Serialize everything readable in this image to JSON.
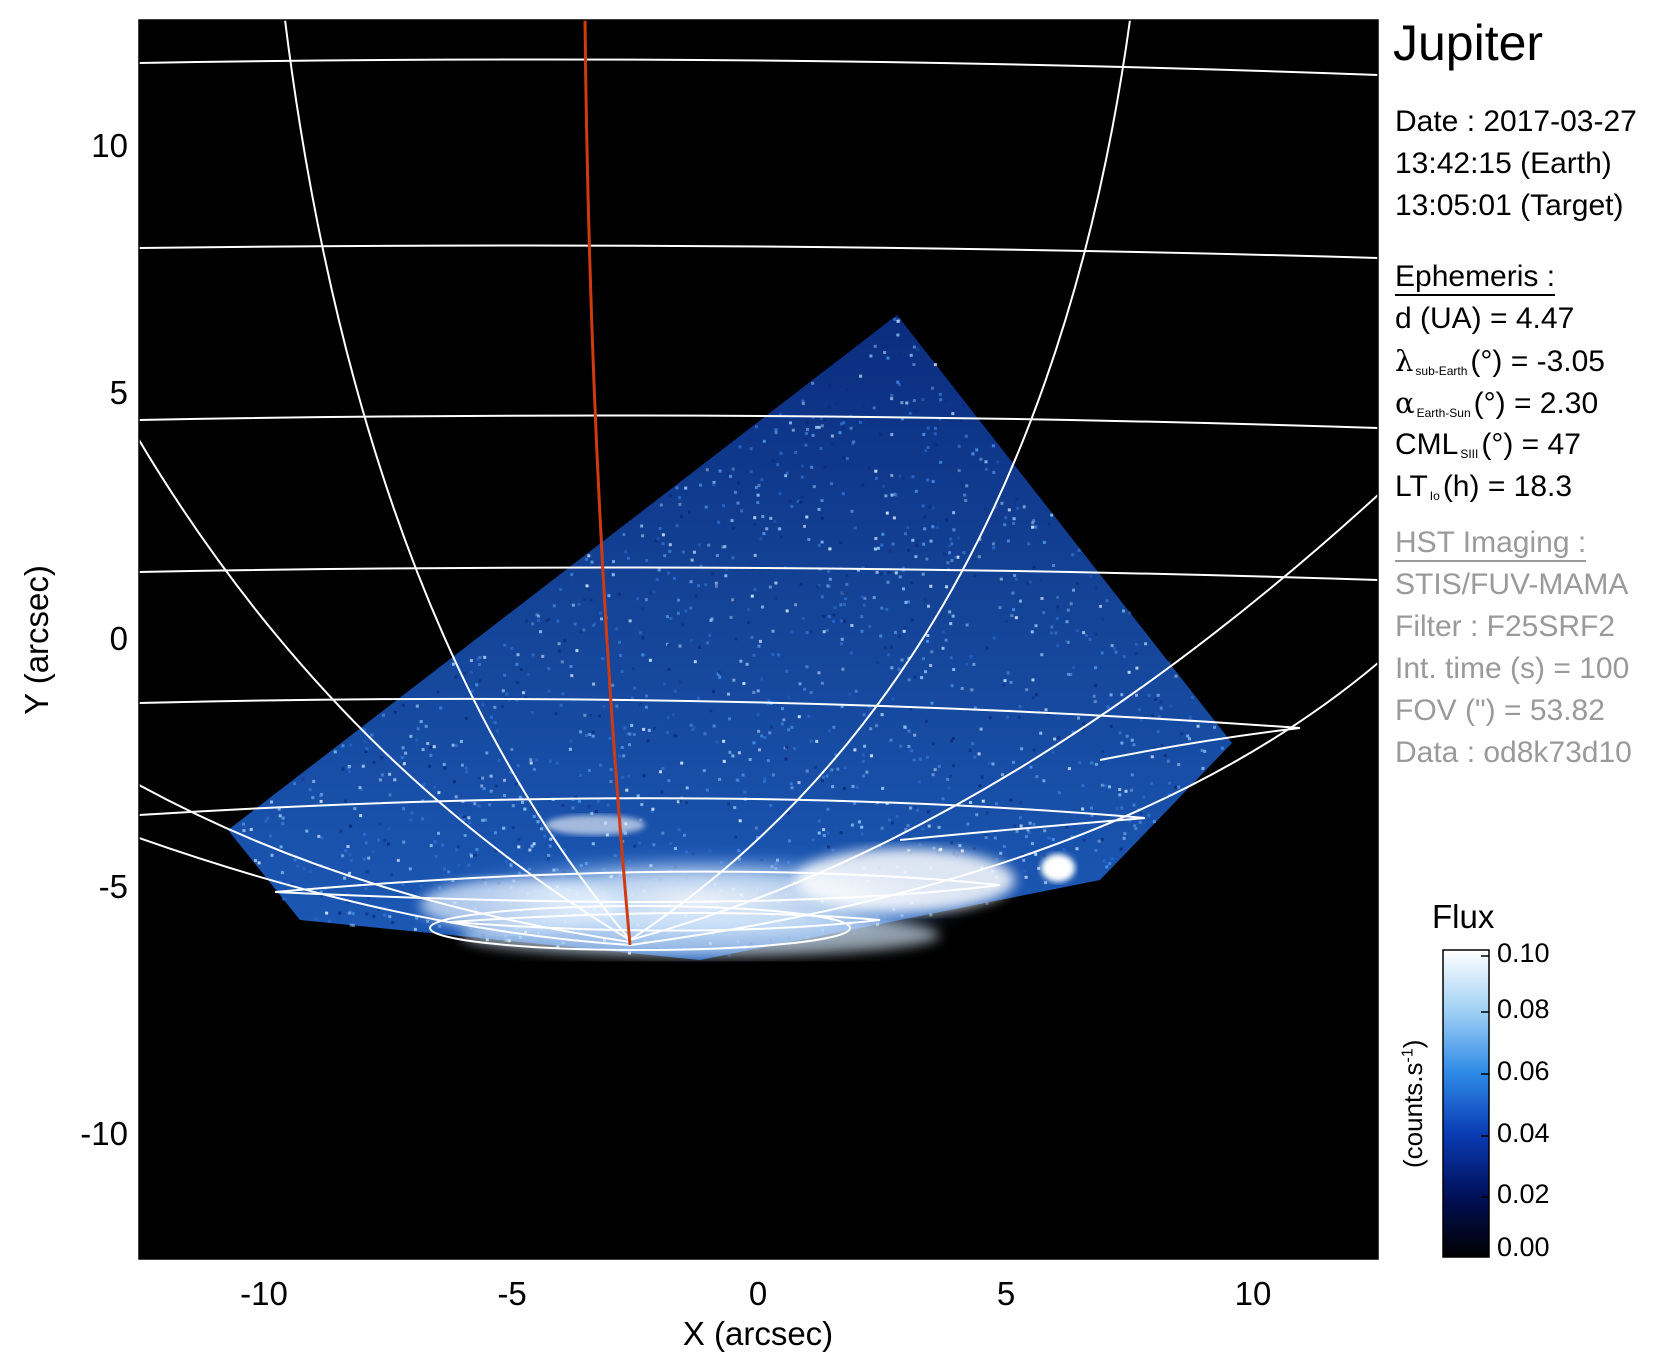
{
  "image": {
    "x_axis_title": "X (arcsec)",
    "y_axis_title": "Y (arcsec)",
    "x_ticks": [
      "-10",
      "-5",
      "0",
      "5",
      "10"
    ],
    "y_ticks": [
      "10",
      "5",
      "0",
      "-5",
      "-10"
    ],
    "x_range": [
      -12.5,
      12.5
    ],
    "y_range": [
      -12.5,
      12.5
    ],
    "background_color": "#000000",
    "grid_color": "#ffffff",
    "footprint_line_color": "#d03a10",
    "emission_color": "#3d7fe0"
  },
  "header": {
    "target": "Jupiter",
    "date": "Date : 2017-03-27",
    "time_earth": "13:42:15 (Earth)",
    "time_target": "13:05:01 (Target)"
  },
  "ephemeris": {
    "heading": "Ephemeris :",
    "distance": "d (UA)    = 4.47",
    "lat_symbol": "λ",
    "lat_sub": "sub-Earth",
    "lat_rest": "(°) = -3.05",
    "phase_symbol": "α",
    "phase_sub": "Earth-Sun",
    "phase_rest": "(°) = 2.30",
    "cml_main": "CML",
    "cml_sub": "SIII",
    "cml_rest": "(°) = 47",
    "lt_main": "LT",
    "lt_sub": "Io",
    "lt_rest": "(h) = 18.3"
  },
  "imaging": {
    "heading": "HST Imaging :",
    "instrument": "STIS/FUV-MAMA",
    "filter": "Filter : F25SRF2",
    "int_time": "Int. time (s) = 100",
    "fov": "FOV (\") = 53.82",
    "data": "Data : od8k73d10"
  },
  "colorbar": {
    "title": "Flux",
    "unit": "(counts.s",
    "unit_exp": "-1",
    "unit_close": ")",
    "ticks": [
      "0.10",
      "0.08",
      "0.06",
      "0.04",
      "0.02",
      "0.00"
    ],
    "range": [
      0.0,
      0.1
    ],
    "colors": [
      "#000000",
      "#00105a",
      "#0a3cb4",
      "#2e8ae6",
      "#9fd0f5",
      "#ffffff"
    ]
  }
}
